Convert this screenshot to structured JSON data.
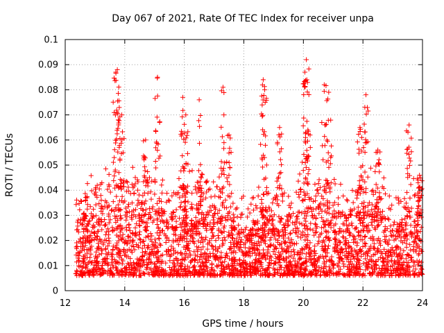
{
  "chart_data": {
    "type": "scatter",
    "title": "Day 067 of 2021, Rate Of TEC Index for receiver unpa",
    "xlabel": "GPS time / hours",
    "ylabel": "ROTI / TECUs",
    "xlim": [
      12,
      24
    ],
    "ylim": [
      0,
      0.1
    ],
    "x_ticks": [
      12,
      14,
      16,
      18,
      20,
      22,
      24
    ],
    "y_ticks": [
      0,
      0.01,
      0.02,
      0.03,
      0.04,
      0.05,
      0.06,
      0.07,
      0.08,
      0.09,
      0.1
    ],
    "grid": true,
    "marker": "plus",
    "series": [
      {
        "name": "ROTI",
        "color": "#ff0000",
        "x_start": 12.35,
        "x_end": 24.0,
        "baseline_envelope": [
          [
            12.4,
            0.028
          ],
          [
            13.0,
            0.032
          ],
          [
            13.5,
            0.036
          ],
          [
            14.0,
            0.034
          ],
          [
            14.5,
            0.036
          ],
          [
            15.0,
            0.035
          ],
          [
            15.5,
            0.03
          ],
          [
            16.0,
            0.032
          ],
          [
            16.5,
            0.034
          ],
          [
            17.0,
            0.034
          ],
          [
            17.5,
            0.03
          ],
          [
            18.0,
            0.024
          ],
          [
            18.5,
            0.028
          ],
          [
            19.0,
            0.032
          ],
          [
            19.5,
            0.03
          ],
          [
            20.0,
            0.032
          ],
          [
            20.5,
            0.034
          ],
          [
            21.0,
            0.034
          ],
          [
            21.5,
            0.03
          ],
          [
            22.0,
            0.034
          ],
          [
            22.5,
            0.034
          ],
          [
            23.0,
            0.028
          ],
          [
            23.5,
            0.03
          ],
          [
            24.0,
            0.032
          ]
        ],
        "peaks": [
          [
            13.75,
            0.088
          ],
          [
            13.7,
            0.087
          ],
          [
            13.9,
            0.07
          ],
          [
            14.7,
            0.06
          ],
          [
            15.1,
            0.085
          ],
          [
            15.95,
            0.077
          ],
          [
            16.05,
            0.07
          ],
          [
            16.5,
            0.076
          ],
          [
            17.3,
            0.081
          ],
          [
            17.5,
            0.062
          ],
          [
            18.65,
            0.084
          ],
          [
            18.7,
            0.08
          ],
          [
            19.2,
            0.065
          ],
          [
            20.1,
            0.092
          ],
          [
            20.05,
            0.087
          ],
          [
            20.15,
            0.064
          ],
          [
            20.7,
            0.082
          ],
          [
            20.85,
            0.079
          ],
          [
            21.9,
            0.065
          ],
          [
            22.1,
            0.078
          ],
          [
            22.5,
            0.056
          ],
          [
            23.55,
            0.066
          ],
          [
            23.9,
            0.046
          ]
        ],
        "point_count": 3200,
        "seed": 67
      }
    ]
  }
}
